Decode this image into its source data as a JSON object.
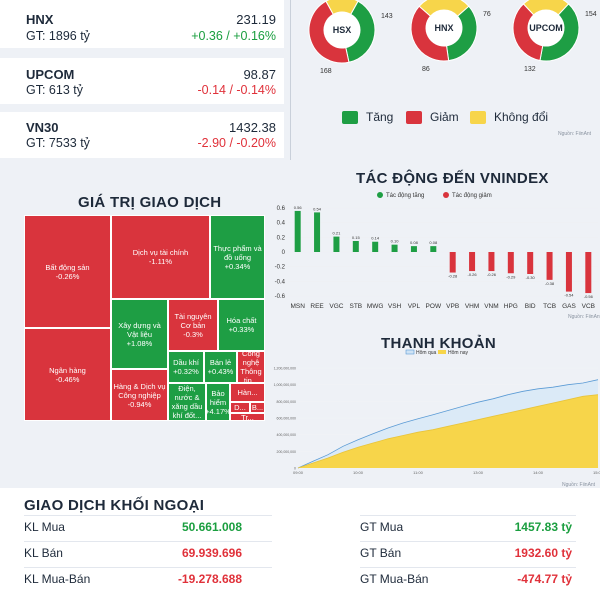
{
  "indices": [
    {
      "name": "HNX",
      "gt": "GT: 1896 tỷ",
      "value": "231.19",
      "change": "+0.36 / +0.16%",
      "dir": "up"
    },
    {
      "name": "UPCOM",
      "gt": "GT: 613 tỷ",
      "value": "98.87",
      "change": "-0.14 / -0.14%",
      "dir": "down"
    },
    {
      "name": "VN30",
      "gt": "GT: 7533 tỷ",
      "value": "1432.38",
      "change": "-2.90 / -0.20%",
      "dir": "down"
    }
  ],
  "donuts": [
    {
      "label": "HSX",
      "up": 143,
      "down": 168,
      "flat": 60,
      "up_label": "143",
      "down_label": "168"
    },
    {
      "label": "HNX",
      "up": 76,
      "down": 86,
      "flat": 60,
      "up_label": "76",
      "down_label": "86"
    },
    {
      "label": "UPCOM",
      "up": 154,
      "down": 132,
      "flat": 90,
      "up_label": "154",
      "down_label": "132"
    }
  ],
  "donut_legend": {
    "up": "Tăng",
    "down": "Giảm",
    "flat": "Không đổi"
  },
  "colors": {
    "up": "#1e9e44",
    "down": "#d9343d",
    "flat": "#f7d54a",
    "navy": "#1e2a3a",
    "blue": "#5b9bd5"
  },
  "source": "Nguồn: FiinAnt",
  "treemap": {
    "title": "GIÁ TRỊ GIAO DỊCH",
    "cells": [
      {
        "name": "Bất động sản",
        "pct": "-0.26%",
        "c": "r"
      },
      {
        "name": "Ngân hàng",
        "pct": "-0.46%",
        "c": "r"
      },
      {
        "name": "Dịch vụ tài chính",
        "pct": "-1.11%",
        "c": "r"
      },
      {
        "name": "Thực phẩm và đồ uống",
        "pct": "+0.34%",
        "c": "g"
      },
      {
        "name": "Xây dựng và Vật liệu",
        "pct": "+1.08%",
        "c": "g"
      },
      {
        "name": "Tài nguyên Cơ bản",
        "pct": "-0.3%",
        "c": "r"
      },
      {
        "name": "Hóa chất",
        "pct": "+0.33%",
        "c": "g"
      },
      {
        "name": "Hàng & Dịch vụ Công nghiệp",
        "pct": "-0.94%",
        "c": "r"
      },
      {
        "name": "Dầu khí",
        "pct": "+0.32%",
        "c": "g"
      },
      {
        "name": "Bán lẻ",
        "pct": "+0.43%",
        "c": "g"
      },
      {
        "name": "Công nghệ Thông tin...",
        "pct": "",
        "c": "r"
      },
      {
        "name": "Điện, nước & xăng dầu khí đốt...",
        "pct": "",
        "c": "g"
      },
      {
        "name": "Hàn...",
        "pct": "",
        "c": "r"
      },
      {
        "name": "D...",
        "pct": "",
        "c": "r"
      },
      {
        "name": "B...",
        "pct": "",
        "c": "r"
      },
      {
        "name": "Tr...",
        "pct": "",
        "c": "r"
      },
      {
        "name": "Bảo hiểm",
        "pct": "+4.17%",
        "c": "g"
      }
    ]
  },
  "impact": {
    "title": "TÁC ĐỘNG ĐẾN VNINDEX",
    "legend_up": "Tác động tăng",
    "legend_down": "Tác động giảm"
  },
  "liquidity": {
    "title": "THANH KHOẢN",
    "legend_prev": "Hôm qua",
    "legend_today": "Hôm nay"
  },
  "chart_data": [
    {
      "type": "bar",
      "categories": [
        "MSN",
        "REE",
        "VGC",
        "STB",
        "MWG",
        "VSH",
        "VPL",
        "POW",
        "VPB",
        "VHM",
        "VNM",
        "HPG",
        "BID",
        "TCB",
        "GAS",
        "VCB"
      ],
      "values": [
        0.56,
        0.54,
        0.21,
        0.15,
        0.14,
        0.1,
        0.08,
        0.08,
        -0.28,
        -0.26,
        -0.26,
        -0.29,
        -0.3,
        -0.38,
        -0.54,
        -0.56
      ],
      "value_labels": [
        "0.56",
        "0.54",
        "0.21",
        "0.15",
        "0.14",
        "0.10",
        "0.08",
        "0.08",
        "-0.28",
        "-0.26",
        "-0.26",
        "-0.29",
        "-0.30",
        "-0.38",
        "-0.54",
        "-0.56"
      ],
      "yticks": [
        "0.6",
        "0.4",
        "0.2",
        "0",
        "-0.2",
        "-0.4",
        "-0.6"
      ],
      "ylim": [
        -0.6,
        0.6
      ]
    },
    {
      "type": "area",
      "series": [
        {
          "name": "Hôm qua"
        },
        {
          "name": "Hôm nay"
        }
      ],
      "x_ticks": [
        "09:00",
        "10:00",
        "11:00",
        "13:00",
        "14:00",
        "15:00"
      ],
      "y_ticks": [
        "1,200,000,000",
        "1,000,000,000",
        "800,000,000",
        "600,000,000",
        "400,000,000",
        "200,000,000",
        "0"
      ],
      "ylim": [
        0,
        1200000000
      ],
      "prev": [
        0,
        80000000,
        160000000,
        260000000,
        340000000,
        410000000,
        480000000,
        540000000,
        590000000,
        640000000,
        690000000,
        740000000,
        790000000,
        830000000,
        880000000,
        920000000,
        950000000,
        970000000,
        1000000000,
        1020000000,
        1060000000
      ],
      "today": [
        0,
        60000000,
        120000000,
        190000000,
        250000000,
        300000000,
        350000000,
        390000000,
        430000000,
        460000000,
        500000000,
        540000000,
        580000000,
        620000000,
        660000000,
        700000000,
        740000000,
        780000000,
        820000000,
        860000000,
        880000000
      ]
    }
  ],
  "foreign": {
    "title": "GIAO DỊCH KHỐI NGOẠI",
    "rows": [
      {
        "l1": "KL Mua",
        "v1": "50.661.008",
        "c1": "up",
        "l2": "GT Mua",
        "v2": "1457.83 tỷ",
        "c2": "up"
      },
      {
        "l1": "KL Bán",
        "v1": "69.939.696",
        "c1": "down",
        "l2": "GT Bán",
        "v2": "1932.60 tỷ",
        "c2": "down"
      },
      {
        "l1": "KL Mua-Bán",
        "v1": "-19.278.688",
        "c1": "down",
        "l2": "GT Mua-Bán",
        "v2": "-474.77 tỷ",
        "c2": "down"
      }
    ]
  }
}
